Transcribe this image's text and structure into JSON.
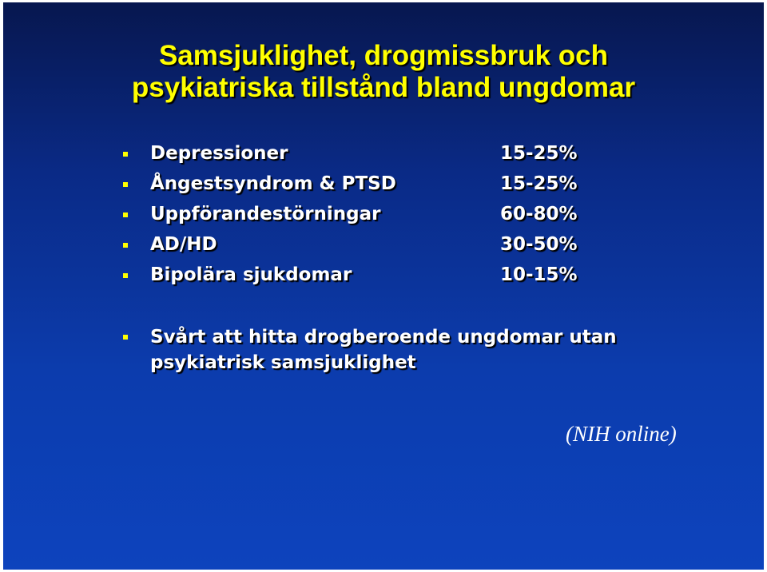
{
  "title": {
    "line1": "Samsjuklighet, drogmissbruk och",
    "line2": "psykiatriska tillstånd bland ungdomar"
  },
  "items": [
    {
      "label": "Depressioner",
      "value": "15-25%"
    },
    {
      "label": "Ångestsyndrom & PTSD",
      "value": "15-25%"
    },
    {
      "label": "Uppförandestörningar",
      "value": "60-80%"
    },
    {
      "label": "AD/HD",
      "value": "30-50%"
    },
    {
      "label": "Bipolära sjukdomar",
      "value": "10-15%"
    }
  ],
  "note": {
    "line1": "Svårt att hitta drogberoende ungdomar utan",
    "line2": "psykiatrisk samsjuklighet"
  },
  "source": "(NIH online)",
  "colors": {
    "title": "#ffff00",
    "bullet": "#ffff00",
    "text": "#ffffff",
    "background_top": "#07174f",
    "background_bottom": "#0d43bd"
  }
}
